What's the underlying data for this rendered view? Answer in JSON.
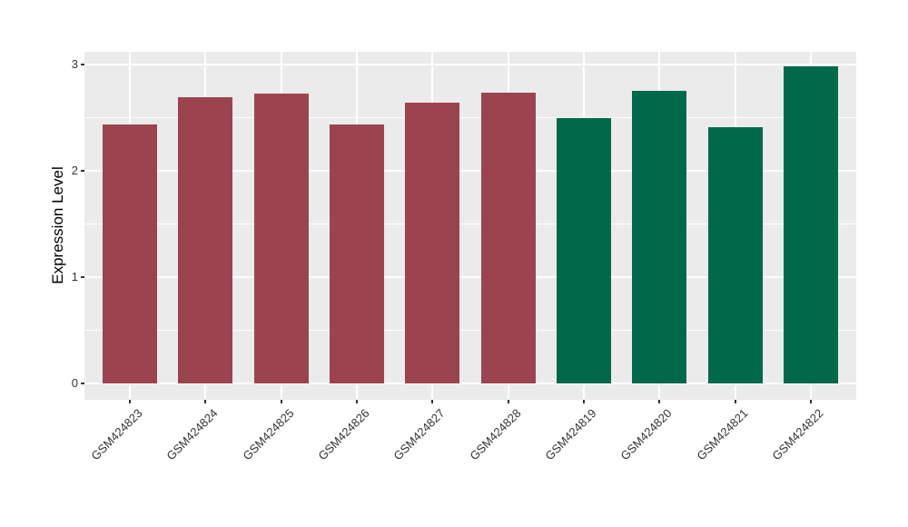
{
  "figure": {
    "background": "#FFFFFF",
    "panel_background": "#EBEBEB",
    "grid_color": "#FFFFFF",
    "axis_text_color": "#333333",
    "axis_title_color": "#000000"
  },
  "chart_data": {
    "type": "bar",
    "title": "",
    "xlabel": "",
    "ylabel": "Expression Level",
    "categories": [
      "GSM424823",
      "GSM424824",
      "GSM424825",
      "GSM424826",
      "GSM424827",
      "GSM424828",
      "GSM424819",
      "GSM424820",
      "GSM424821",
      "GSM424822"
    ],
    "values": [
      2.44,
      2.69,
      2.73,
      2.44,
      2.64,
      2.74,
      2.5,
      2.75,
      2.41,
      2.98
    ],
    "bar_colors": [
      "#9B4450",
      "#9B4450",
      "#9B4450",
      "#9B4450",
      "#9B4450",
      "#9B4450",
      "#006949",
      "#006949",
      "#006949",
      "#006949"
    ],
    "groups": [
      {
        "name": "maroon-group",
        "color": "#9B4450",
        "members": [
          "GSM424823",
          "GSM424824",
          "GSM424825",
          "GSM424826",
          "GSM424827",
          "GSM424828"
        ]
      },
      {
        "name": "green-group",
        "color": "#006949",
        "members": [
          "GSM424819",
          "GSM424820",
          "GSM424821",
          "GSM424822"
        ]
      }
    ],
    "y_ticks": [
      0,
      1,
      2,
      3
    ],
    "y_minor_ticks": [
      0.5,
      1.5,
      2.5
    ],
    "ylim": [
      -0.15,
      3.12
    ],
    "grid": true,
    "legend": "none"
  }
}
